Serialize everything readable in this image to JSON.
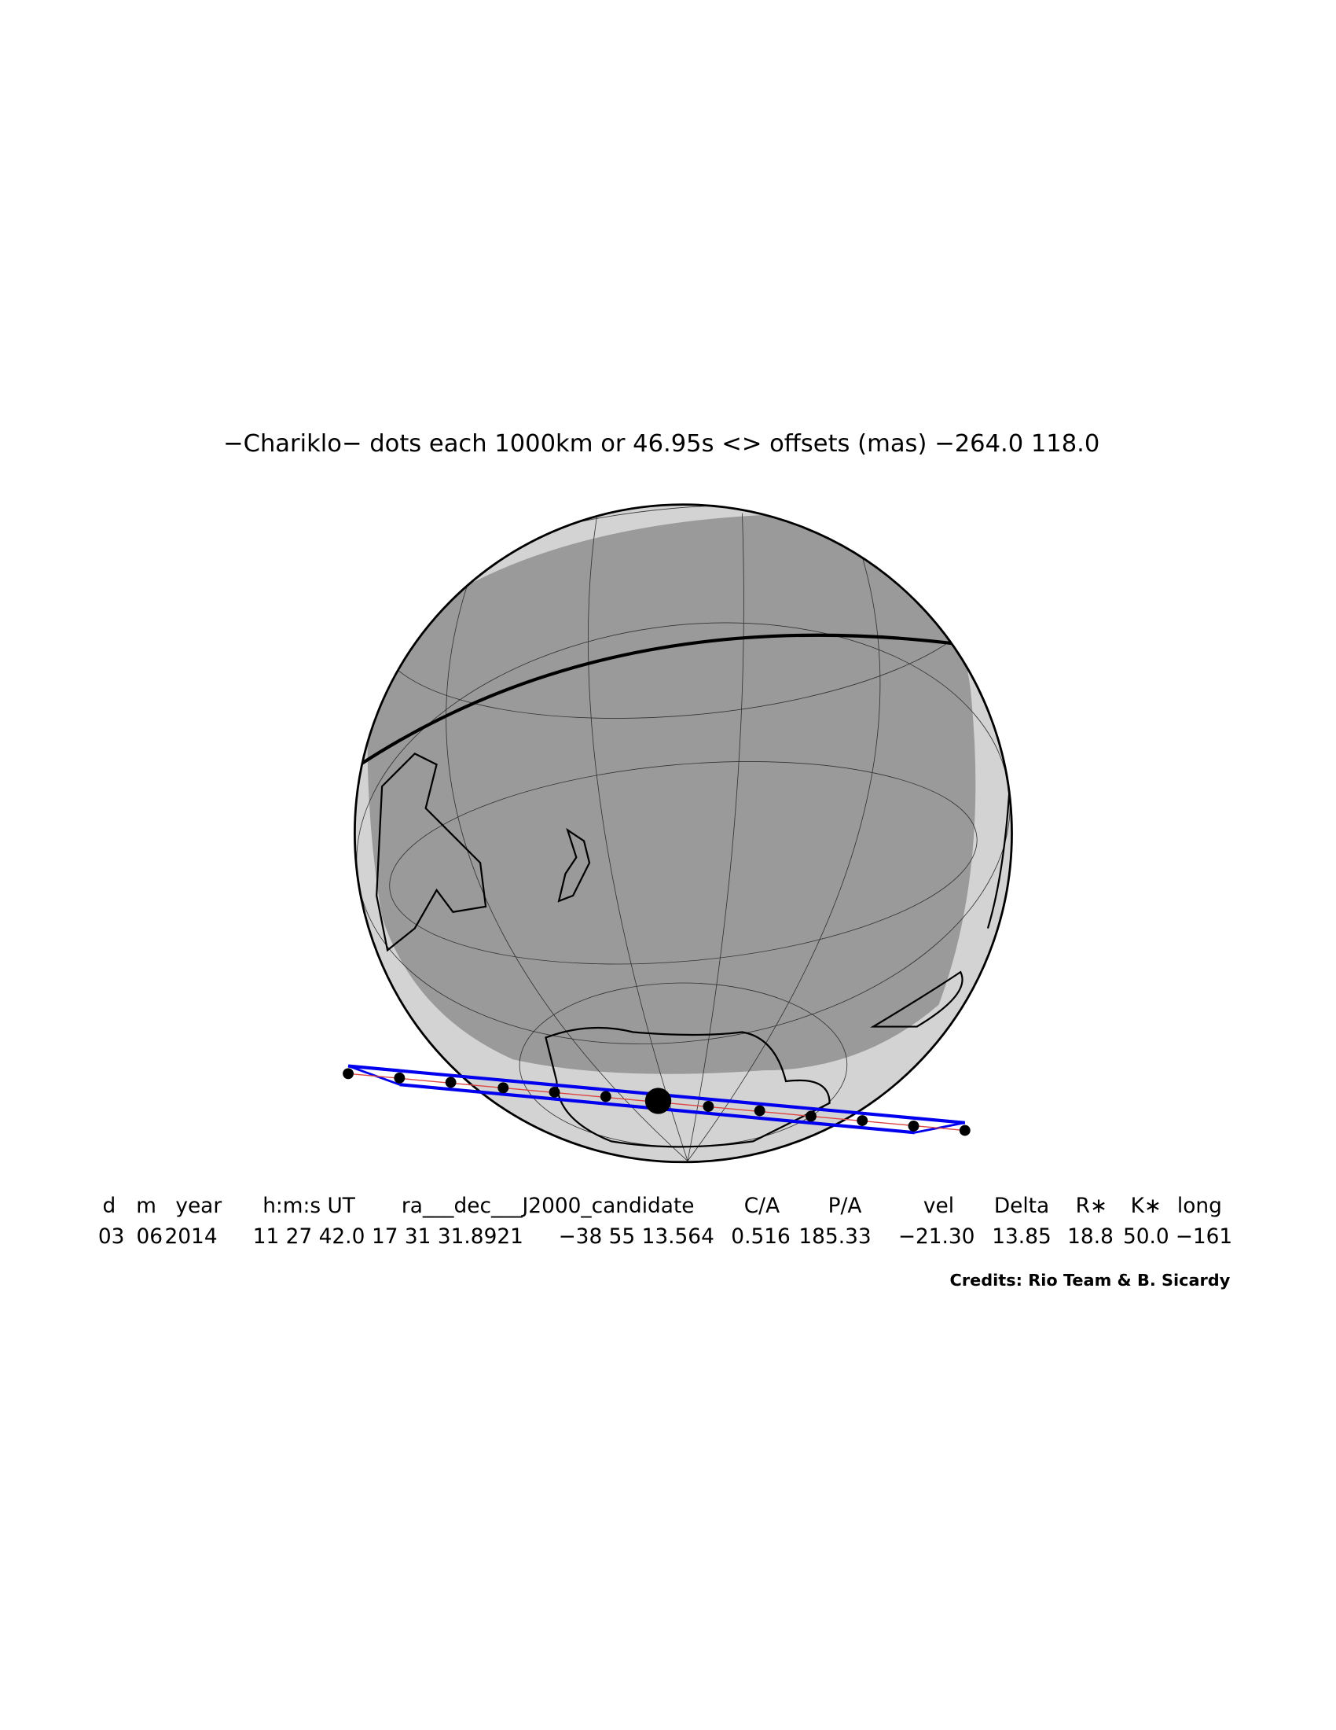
{
  "title": "−Chariklo− dots each 1000km or 46.95s <> offsets (mas) −264.0  118.0",
  "table": {
    "header": [
      "d",
      "m",
      "year",
      "h:m:s UT",
      "ra___dec___J2000_candidate",
      "C/A",
      "P/A",
      "vel",
      "Delta",
      "R∗",
      "K∗",
      "long"
    ],
    "rows": [
      [
        "03",
        "06",
        "2014",
        "11 27 42.0",
        "17 31 31.8921",
        "−38 55 13.564",
        "0.516",
        "185.33",
        "−21.30",
        "13.85",
        "18.8",
        "50.0",
        "−161"
      ]
    ]
  },
  "credits": "Credits: Rio Team & B. Sicardy"
}
